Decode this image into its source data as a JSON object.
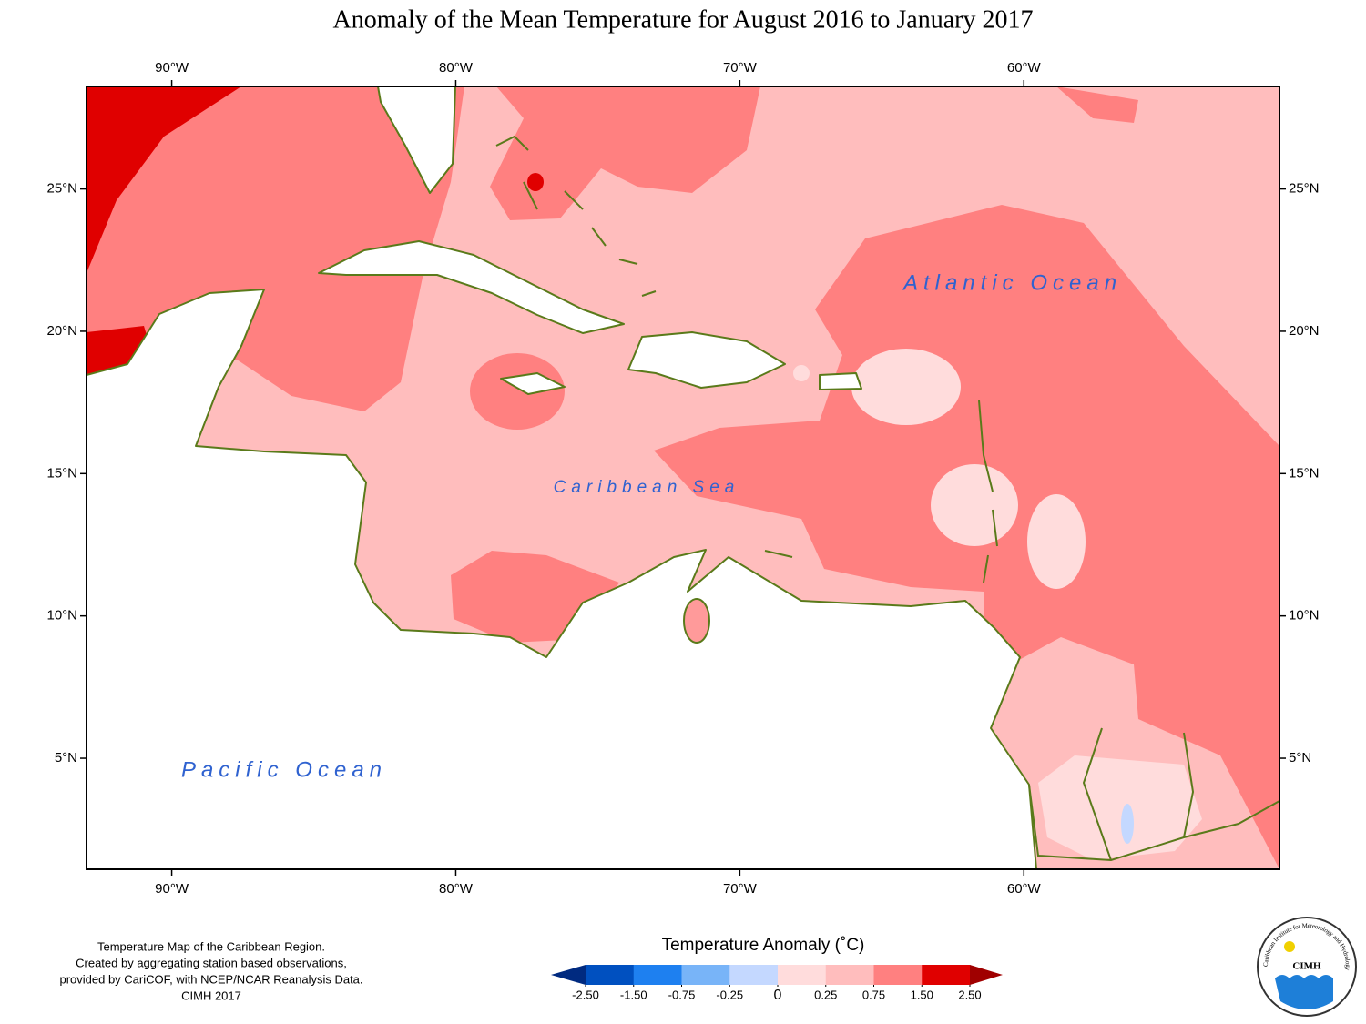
{
  "title": "Anomaly of the Mean Temperature for August 2016 to January 2017",
  "map": {
    "lonlim": [
      -93,
      -51
    ],
    "latlim": [
      1.1,
      28.6
    ],
    "lonticks": [
      {
        "value": -90,
        "label": "90°W"
      },
      {
        "value": -80,
        "label": "80°W"
      },
      {
        "value": -70,
        "label": "70°W"
      },
      {
        "value": -60,
        "label": "60°W"
      }
    ],
    "latticks": [
      {
        "value": 25,
        "label": "25°N"
      },
      {
        "value": 20,
        "label": "20°N"
      },
      {
        "value": 15,
        "label": "15°N"
      },
      {
        "value": 10,
        "label": "10°N"
      },
      {
        "value": 5,
        "label": "5°N"
      }
    ],
    "labels": [
      "Atlantic Ocean",
      "Caribbean Sea",
      "Pacific Ocean"
    ]
  },
  "colorbar": {
    "title": "Temperature Anomaly (˚C)",
    "ticks": [
      {
        "value": -2.5,
        "label": "-2.50"
      },
      {
        "value": -1.5,
        "label": "-1.50"
      },
      -0.75,
      -0.25,
      0,
      0.25,
      0.75,
      {
        "value": 1.5,
        "label": "1.50"
      },
      {
        "value": 2.5,
        "label": "2.50"
      }
    ],
    "colors": [
      "#002a80",
      "#0050c0",
      "#1e80f0",
      "#78b4f8",
      "#c4d8ff",
      "#ffdcdc",
      "#ffbdbd",
      "#ff8080",
      "#e00000",
      "#a00000"
    ]
  },
  "footnote": [
    "Temperature Map of the Caribbean Region.",
    "Created by aggregating station based observations,",
    "provided by CariCOF, with NCEP/NCAR Reanalysis Data.",
    "CIMH 2017"
  ],
  "logo": {
    "ring": "Caribbean Institute for Meteorology and Hydrology",
    "name": "CIMH"
  }
}
